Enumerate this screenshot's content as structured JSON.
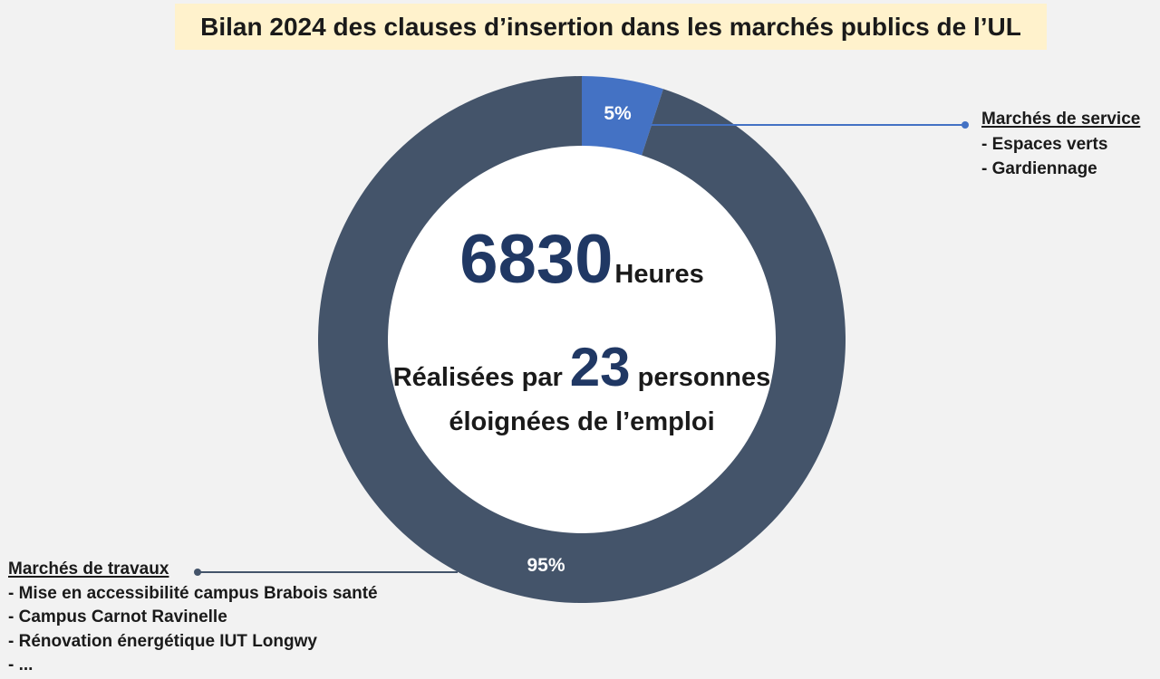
{
  "colors": {
    "background": "#f2f2f2",
    "title_background": "#fff2cc",
    "text": "#1a1a1a",
    "highlight_number": "#203864",
    "data_label": "#ffffff",
    "donut_hole": "#ffffff"
  },
  "center": {
    "hours_value": "6830",
    "hours_unit": "Heures",
    "people_prefix": "Réalisées par",
    "people_value": "23",
    "people_suffix": "personnes",
    "people_line2": "éloignées de l’emploi"
  },
  "chart_data": {
    "type": "pie",
    "variant": "donut",
    "title": "Bilan 2024 des clauses d’insertion dans les marchés publics de l’UL",
    "categories": [
      "Marchés de service",
      "Marchés de travaux"
    ],
    "values": [
      5,
      95
    ],
    "data_labels": [
      "5%",
      "95%"
    ],
    "colors": [
      "#4472c4",
      "#44546a"
    ],
    "annotations": [
      [
        "- Espaces verts",
        "- Gardiennage"
      ],
      [
        "- Mise en accessibilité campus Brabois santé",
        "- Campus Carnot Ravinelle",
        "- Rénovation énergétique IUT Longwy",
        "- ..."
      ]
    ]
  }
}
